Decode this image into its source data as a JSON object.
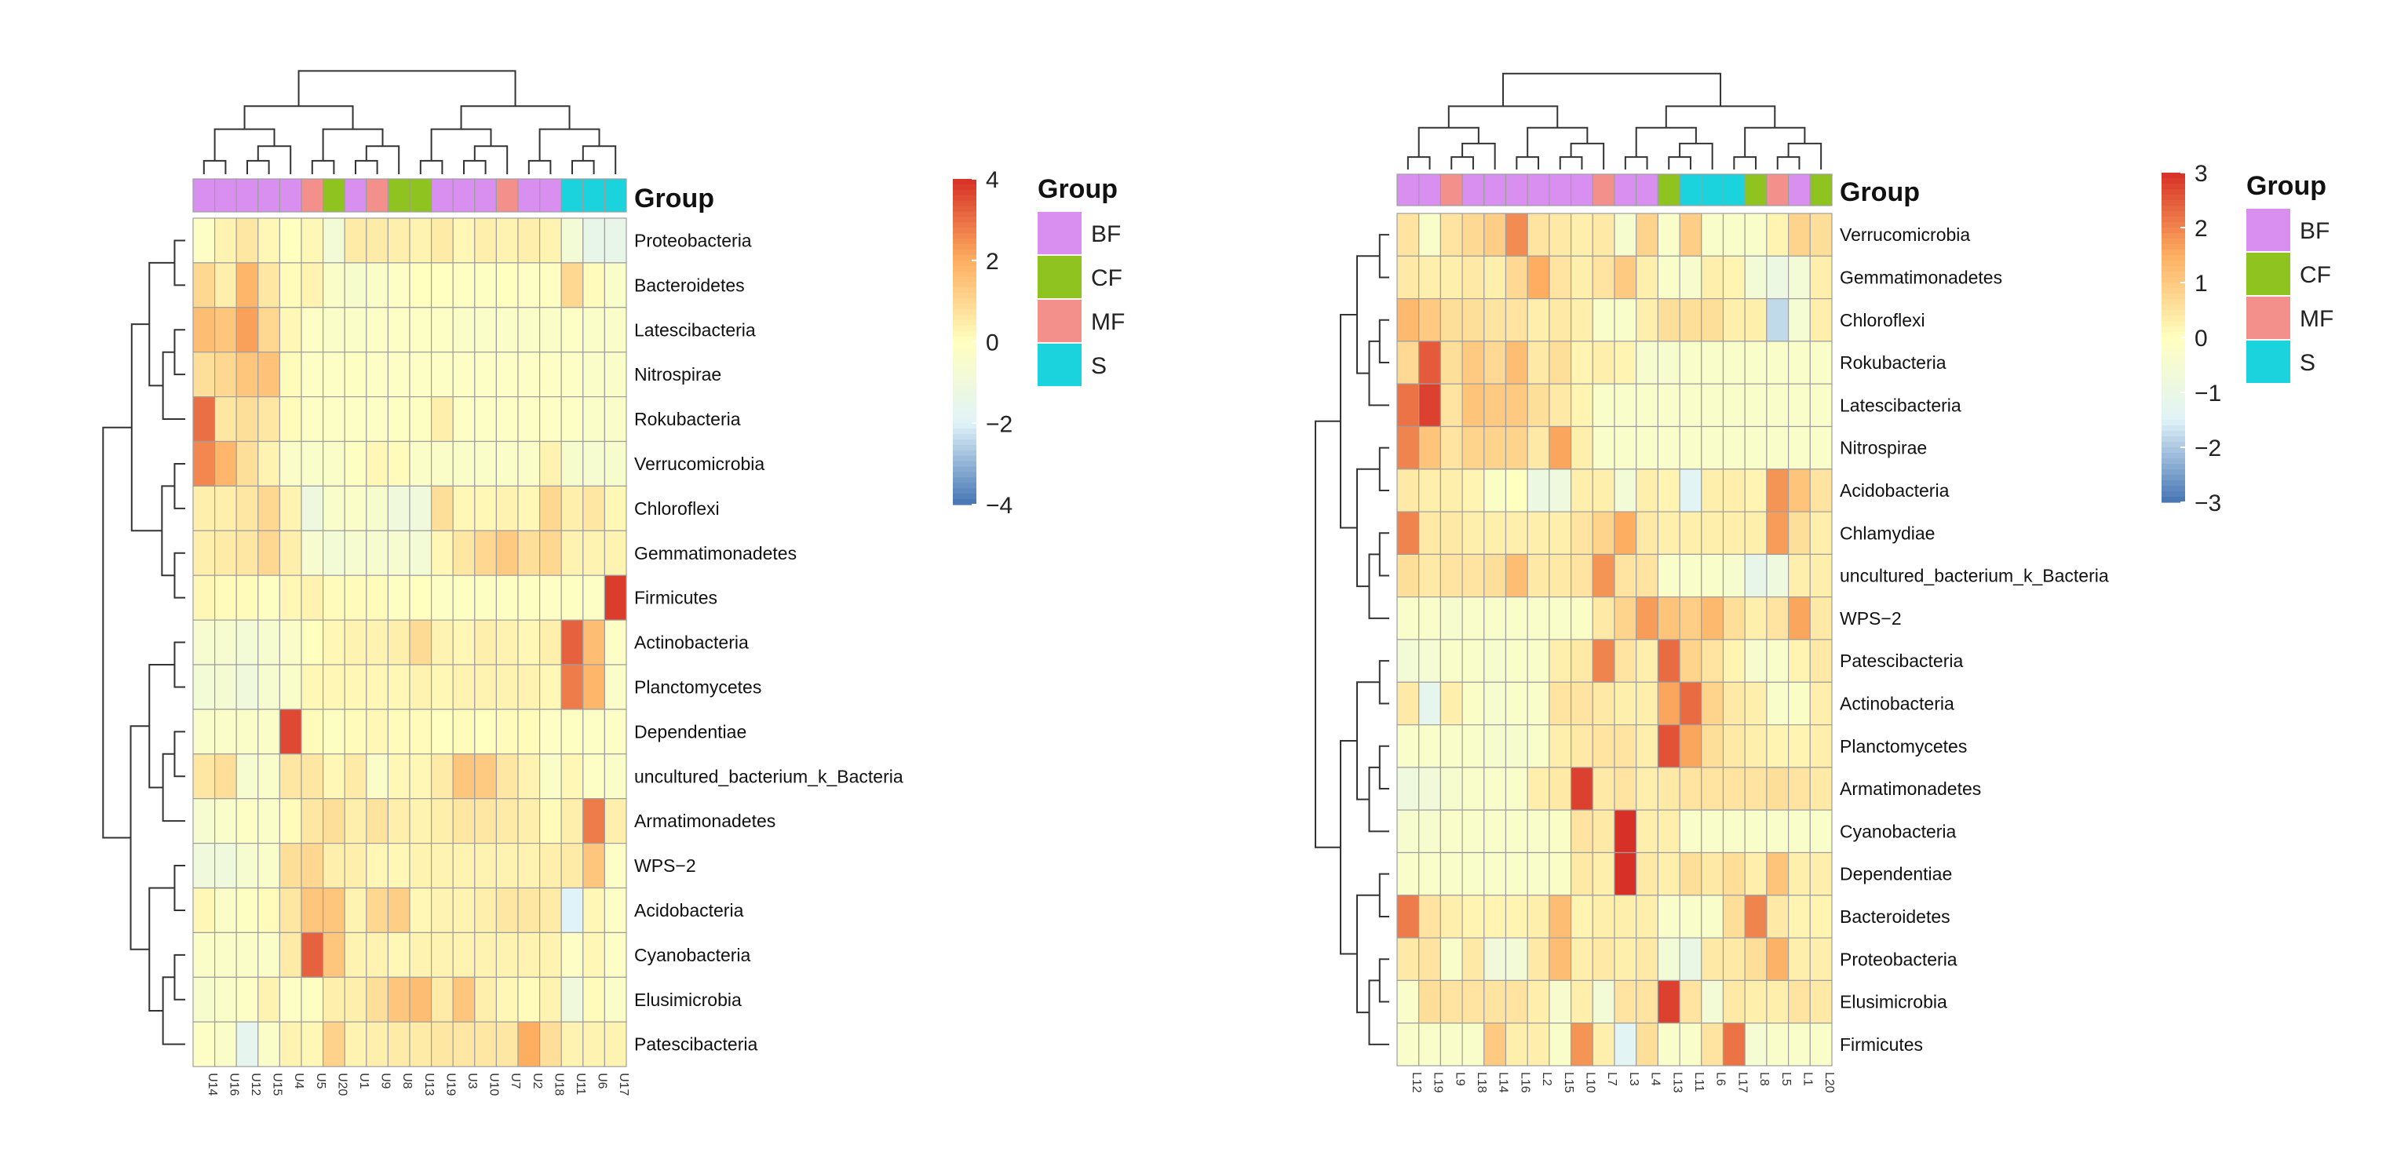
{
  "group_colors": {
    "BF": "#d88ff0",
    "CF": "#8fc31f",
    "MF": "#f3908c",
    "S": "#1ad3dc"
  },
  "color_scale": [
    "#4575b4",
    "#e0f3f8",
    "#ffffbf",
    "#fdae61",
    "#d73027"
  ],
  "annotation_label": "Group",
  "chart_data": [
    {
      "type": "heatmap",
      "title": "",
      "columns": [
        "U14",
        "U16",
        "U12",
        "U15",
        "U4",
        "U5",
        "U20",
        "U1",
        "U9",
        "U8",
        "U13",
        "U19",
        "U3",
        "U10",
        "U7",
        "U2",
        "U18",
        "U11",
        "U6",
        "U17"
      ],
      "column_groups": [
        "BF",
        "BF",
        "BF",
        "BF",
        "BF",
        "MF",
        "CF",
        "BF",
        "MF",
        "CF",
        "CF",
        "BF",
        "BF",
        "BF",
        "MF",
        "BF",
        "BF",
        "S",
        "S",
        "S"
      ],
      "rows": [
        "Proteobacteria",
        "Bacteroidetes",
        "Latescibacteria",
        "Nitrospirae",
        "Rokubacteria",
        "Verrucomicrobia",
        "Chloroflexi",
        "Gemmatimonadetes",
        "Firmicutes",
        "Actinobacteria",
        "Planctomycetes",
        "Dependentiae",
        "uncultured_bacterium_k_Bacteria",
        "Armatimonadetes",
        "WPS−2",
        "Acidobacteria",
        "Cyanobacteria",
        "Elusimicrobia",
        "Patescibacteria"
      ],
      "values": [
        [
          -0.2,
          0.3,
          0.6,
          0.2,
          0,
          0.2,
          -0.8,
          0.5,
          0.5,
          0.4,
          0.3,
          0.5,
          0.2,
          0.4,
          0.3,
          0.4,
          0.3,
          -0.8,
          -1.5,
          -1.5
        ],
        [
          1.0,
          0.4,
          1.8,
          0.6,
          0.1,
          0.3,
          -0.3,
          -0.5,
          -0.3,
          -0.2,
          0,
          0,
          -0.1,
          -0.1,
          0,
          -0.2,
          -0.1,
          1.0,
          0.1,
          -0.4
        ],
        [
          1.6,
          1.4,
          2.2,
          1.0,
          0.2,
          -0.2,
          -0.3,
          -0.3,
          -0.2,
          -0.2,
          -0.2,
          -0.2,
          -0.3,
          -0.3,
          -0.3,
          -0.3,
          -0.3,
          -0.2,
          -0.3,
          -0.3
        ],
        [
          0.8,
          1.0,
          1.4,
          1.5,
          0.1,
          -0.2,
          -0.2,
          -0.1,
          -0.2,
          -0.2,
          -0.2,
          -0.2,
          -0.2,
          -0.2,
          -0.2,
          -0.2,
          -0.2,
          -0.2,
          -0.3,
          -0.3
        ],
        [
          3.0,
          0.6,
          0.8,
          0.6,
          0.1,
          -0.2,
          -0.2,
          -0.2,
          -0.2,
          -0.1,
          -0.1,
          0.4,
          -0.2,
          -0.2,
          -0.2,
          -0.2,
          -0.2,
          -0.2,
          -0.3,
          -0.3
        ],
        [
          2.6,
          1.8,
          0.8,
          0.3,
          -0.3,
          -0.4,
          -0.3,
          -0.1,
          0.2,
          0.1,
          -0.3,
          -0.3,
          -0.3,
          -0.3,
          -0.3,
          -0.3,
          0.3,
          -0.5,
          -0.6,
          -0.5
        ],
        [
          0.4,
          0.4,
          0.6,
          1.0,
          0.3,
          -1.1,
          -0.4,
          -0.3,
          -0.5,
          -1.0,
          -1.0,
          0.8,
          0.2,
          0.2,
          0.3,
          0.2,
          1.0,
          0.4,
          0.6,
          0.2
        ],
        [
          0.4,
          0.5,
          0.6,
          1.0,
          0.4,
          -0.6,
          -0.8,
          -0.6,
          -0.6,
          -0.6,
          -0.8,
          0.2,
          0.6,
          1.0,
          1.3,
          0.8,
          1.0,
          0.3,
          0.3,
          0.3
        ],
        [
          0.2,
          0.1,
          0.1,
          -0.1,
          0.2,
          0.3,
          0.1,
          0.1,
          0.1,
          -0.1,
          0,
          -0.2,
          -0.1,
          -0.1,
          -0.1,
          -0.1,
          -0.2,
          -0.1,
          -0.2,
          3.8
        ],
        [
          -0.6,
          -0.6,
          -0.8,
          -0.6,
          -0.3,
          0,
          0.2,
          0.3,
          0.3,
          0.4,
          0.9,
          0.3,
          0.2,
          0.4,
          0.3,
          0.2,
          0.4,
          3.2,
          1.6,
          -0.2
        ],
        [
          -0.8,
          -0.7,
          -1.0,
          -0.6,
          -0.4,
          0.2,
          0.2,
          0.2,
          0.2,
          0.2,
          0.3,
          0.2,
          0.3,
          0.3,
          0.3,
          0.3,
          0.2,
          2.8,
          1.8,
          -0.3
        ],
        [
          -0.4,
          -0.3,
          -0.3,
          -0.3,
          3.6,
          0.1,
          -0.1,
          0.1,
          0.2,
          0.1,
          0.1,
          0,
          0.1,
          0,
          0.1,
          0.1,
          -0.2,
          -0.1,
          -0.2,
          -0.2
        ],
        [
          0.6,
          0.8,
          -0.6,
          -0.4,
          0.6,
          0.6,
          0.2,
          0.5,
          -0.3,
          0.2,
          0.2,
          0.5,
          1.4,
          1.3,
          0.6,
          0.3,
          -0.3,
          0.2,
          -0.2,
          -0.3
        ],
        [
          -0.6,
          -0.4,
          -0.2,
          -0.3,
          0.1,
          0.6,
          0.8,
          0.4,
          0.7,
          0.4,
          0.3,
          0.4,
          0.6,
          0.6,
          0.5,
          0.4,
          0.1,
          0.4,
          2.8,
          0.4
        ],
        [
          -1.0,
          -1.0,
          -0.6,
          -0.4,
          0.8,
          1.0,
          0.4,
          0.4,
          0.2,
          0.2,
          0.3,
          0.3,
          0.3,
          0.3,
          0.3,
          0.3,
          0.4,
          0.5,
          1.4,
          -0.2
        ],
        [
          0.2,
          -0.3,
          -0.1,
          0.1,
          0.6,
          1.4,
          1.4,
          0.3,
          1.0,
          1.2,
          0.2,
          0.3,
          0.3,
          0.4,
          0.6,
          0.6,
          0.5,
          -2.0,
          0.2,
          -0.2
        ],
        [
          -0.3,
          -0.3,
          -0.3,
          -0.3,
          0.5,
          3.2,
          1.4,
          0.3,
          0.3,
          0.2,
          0.3,
          0.3,
          0.3,
          0.3,
          0.3,
          0.3,
          0.3,
          -0.2,
          0.2,
          -0.2
        ],
        [
          -0.5,
          -0.3,
          -0.2,
          0.3,
          -0.2,
          -0.1,
          0.4,
          0.4,
          0.8,
          1.4,
          1.6,
          0.5,
          1.4,
          0.4,
          0.2,
          0.1,
          0.3,
          -1.0,
          0.1,
          -0.3
        ],
        [
          -0.2,
          -0.3,
          -1.6,
          -0.3,
          0.3,
          0.2,
          1.1,
          0.3,
          0.4,
          0.5,
          0.5,
          0.6,
          0.6,
          0.6,
          0.6,
          2.0,
          0.8,
          0.3,
          0.3,
          0.3
        ]
      ],
      "scale_range": [
        -4,
        4
      ],
      "scale_ticks": [
        4,
        2,
        0,
        -2,
        -4
      ],
      "scale_tick_labels": [
        "4",
        "2",
        "0",
        "−2",
        "−4"
      ],
      "legend": {
        "title": "Group",
        "entries": [
          "BF",
          "CF",
          "MF",
          "S"
        ]
      }
    },
    {
      "type": "heatmap",
      "title": "",
      "columns": [
        "L12",
        "L19",
        "L9",
        "L18",
        "L14",
        "L16",
        "L2",
        "L15",
        "L10",
        "L7",
        "L3",
        "L4",
        "L13",
        "L11",
        "L6",
        "L17",
        "L8",
        "L5",
        "L1",
        "L20"
      ],
      "column_groups": [
        "BF",
        "BF",
        "MF",
        "BF",
        "BF",
        "BF",
        "BF",
        "BF",
        "BF",
        "MF",
        "BF",
        "BF",
        "CF",
        "S",
        "S",
        "S",
        "CF",
        "MF",
        "BF",
        "CF"
      ],
      "rows": [
        "Verrucomicrobia",
        "Gemmatimonadetes",
        "Chloroflexi",
        "Rokubacteria",
        "Latescibacteria",
        "Nitrospirae",
        "Acidobacteria",
        "Chlamydiae",
        "uncultured_bacterium_k_Bacteria",
        "WPS−2",
        "Patescibacteria",
        "Actinobacteria",
        "Planctomycetes",
        "Armatimonadetes",
        "Cyanobacteria",
        "Dependentiae",
        "Bacteroidetes",
        "Proteobacteria",
        "Elusimicrobia",
        "Firmicutes"
      ],
      "values": [
        [
          0.5,
          -0.3,
          0.5,
          0.7,
          0.9,
          1.9,
          0.5,
          0.4,
          0.3,
          0.4,
          -0.4,
          0.8,
          -0.3,
          0.9,
          -0.3,
          -0.3,
          -0.3,
          0.2,
          0.8,
          0.6
        ],
        [
          0.4,
          0.3,
          0.3,
          0.4,
          0.3,
          0.7,
          1.5,
          0.5,
          0.3,
          0.5,
          1.0,
          0.3,
          -0.3,
          -0.4,
          0.3,
          0.2,
          -0.6,
          -0.9,
          -0.6,
          0.3
        ],
        [
          1.3,
          1.0,
          0.6,
          0.6,
          0.5,
          0.5,
          0.3,
          0.4,
          0.3,
          -0.3,
          -0.3,
          0.3,
          0.6,
          0.6,
          0.6,
          0.3,
          0.3,
          -1.8,
          -0.5,
          0.3
        ],
        [
          0.7,
          2.5,
          0.6,
          1.0,
          0.7,
          1.2,
          0.4,
          0.6,
          0.2,
          0.3,
          0.2,
          -0.4,
          -0.4,
          -0.3,
          -0.3,
          -0.3,
          -0.3,
          -0.3,
          -0.3,
          -0.3
        ],
        [
          2.2,
          2.8,
          0.5,
          1.1,
          1.0,
          1.0,
          0.6,
          0.4,
          0.2,
          -0.3,
          -0.3,
          -0.3,
          -0.3,
          -0.3,
          -0.3,
          -0.3,
          -0.3,
          -0.3,
          -0.3,
          -0.3
        ],
        [
          2.0,
          1.1,
          0.5,
          0.8,
          0.8,
          0.8,
          0.4,
          1.6,
          0.3,
          -0.3,
          -0.3,
          -0.3,
          -0.3,
          -0.3,
          -0.3,
          -0.3,
          -0.3,
          -0.3,
          -0.3,
          -0.3
        ],
        [
          0.4,
          0.3,
          0.3,
          0.2,
          -0.2,
          0,
          -0.9,
          -0.8,
          0.3,
          0.3,
          -0.6,
          0.3,
          0.2,
          -1.4,
          0.3,
          0.3,
          0.2,
          1.8,
          1.1,
          0.5
        ],
        [
          2.0,
          0.4,
          0.4,
          0.3,
          0.3,
          0.3,
          0.3,
          0.3,
          0.5,
          0.8,
          1.5,
          0.4,
          0.3,
          0.3,
          0.3,
          0.3,
          0.3,
          1.7,
          0.6,
          0.3
        ],
        [
          0.6,
          0.4,
          0.5,
          0.5,
          0.6,
          1.2,
          0.4,
          0.4,
          0.5,
          1.8,
          0.5,
          0.5,
          -0.3,
          -0.3,
          -0.3,
          -0.4,
          -1.1,
          -0.8,
          0.3,
          0.3
        ],
        [
          -0.3,
          -0.3,
          -0.4,
          -0.3,
          -0.3,
          -0.3,
          -0.3,
          -0.3,
          -0.2,
          0.4,
          0.8,
          1.7,
          1.1,
          0.9,
          1.3,
          0.6,
          0.3,
          0.5,
          1.6,
          0.4
        ],
        [
          -0.6,
          -0.5,
          -0.3,
          -0.3,
          -0.4,
          -0.3,
          -0.3,
          0.3,
          0.4,
          2.0,
          0.5,
          0.3,
          2.3,
          0.8,
          0.5,
          0.2,
          -0.4,
          -0.3,
          0.2,
          0.4
        ],
        [
          0.4,
          -1.2,
          0.3,
          -0.2,
          -0.4,
          -0.3,
          -0.3,
          0.5,
          0.5,
          0.4,
          0.3,
          0.3,
          1.6,
          2.3,
          0.8,
          0.4,
          0.3,
          -0.3,
          -0.2,
          0.3
        ],
        [
          -0.3,
          -0.3,
          -0.3,
          -0.3,
          -0.4,
          -0.4,
          -0.3,
          0.3,
          0.4,
          0.5,
          0.5,
          0.3,
          2.6,
          1.6,
          0.6,
          0.4,
          0.3,
          0.2,
          0.2,
          0.3
        ],
        [
          -0.8,
          -0.7,
          -0.4,
          -0.3,
          -0.3,
          -0.3,
          0.3,
          0.4,
          2.8,
          0.4,
          0.5,
          0.3,
          0.4,
          0.5,
          0.5,
          0.5,
          0.5,
          0.6,
          0.5,
          0.4
        ],
        [
          -0.4,
          -0.4,
          -0.3,
          -0.3,
          -0.3,
          -0.3,
          -0.3,
          -0.2,
          0.5,
          0.4,
          3.4,
          0.3,
          0.3,
          -0.3,
          -0.3,
          -0.3,
          -0.3,
          -0.3,
          -0.3,
          -0.3
        ],
        [
          -0.3,
          -0.3,
          -0.3,
          -0.3,
          -0.3,
          -0.3,
          -0.3,
          -0.2,
          0.4,
          0.3,
          3.0,
          0.4,
          0.3,
          0.6,
          0.4,
          0.6,
          0.3,
          1.1,
          0.3,
          0.3
        ],
        [
          2.1,
          0.5,
          0.3,
          0.2,
          0.2,
          0.2,
          0.3,
          1.2,
          0.2,
          0.3,
          0.3,
          0.3,
          -0.3,
          -0.3,
          -0.3,
          0.6,
          2.0,
          0.4,
          0.2,
          0.2
        ],
        [
          0.4,
          0.5,
          -0.3,
          0.4,
          -0.7,
          -0.6,
          0.4,
          1.2,
          0.3,
          0.4,
          0.3,
          0.4,
          -0.6,
          -1.0,
          0.4,
          0.4,
          0.6,
          1.4,
          0.3,
          0.3
        ],
        [
          -0.3,
          0.6,
          0.5,
          0.5,
          0.5,
          0.5,
          0.3,
          -0.4,
          0.3,
          -0.6,
          0.5,
          0.5,
          2.8,
          0.5,
          -0.6,
          0.4,
          0.3,
          0.3,
          0.5,
          0.4
        ],
        [
          -0.3,
          -0.3,
          -0.3,
          -0.3,
          1.0,
          0.3,
          0.3,
          -0.3,
          1.8,
          0.3,
          -1.4,
          0.6,
          -0.3,
          -0.3,
          0.5,
          2.2,
          -0.5,
          -0.3,
          -0.3,
          -0.3
        ]
      ],
      "scale_range": [
        -3,
        3
      ],
      "scale_ticks": [
        3,
        2,
        1,
        0,
        -1,
        -2,
        -3
      ],
      "scale_tick_labels": [
        "3",
        "2",
        "1",
        "0",
        "−1",
        "−2",
        "−3"
      ],
      "legend": {
        "title": "Group",
        "entries": [
          "BF",
          "CF",
          "MF",
          "S"
        ]
      }
    }
  ]
}
